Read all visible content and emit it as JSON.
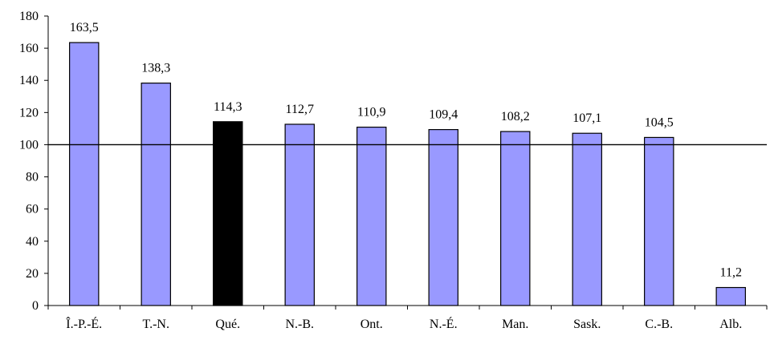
{
  "chart_data": {
    "type": "bar",
    "title": "",
    "xlabel": "",
    "ylabel": "",
    "categories": [
      "Î.-P.-É.",
      "T.-N.",
      "Qué.",
      "N.-B.",
      "Ont.",
      "N.-É.",
      "Man.",
      "Sask.",
      "C.-B.",
      "Alb."
    ],
    "values": [
      163.5,
      138.3,
      114.3,
      112.7,
      110.9,
      109.4,
      108.2,
      107.1,
      104.5,
      11.2
    ],
    "value_labels": [
      "163,5",
      "138,3",
      "114,3",
      "112,7",
      "110,9",
      "109,4",
      "108,2",
      "107,1",
      "104,5",
      "11,2"
    ],
    "highlight_index": 2,
    "ylim": [
      0,
      180
    ],
    "yticks": [
      0,
      20,
      40,
      60,
      80,
      100,
      120,
      140,
      160,
      180
    ],
    "reference_line": 100,
    "grid": false,
    "legend": "none",
    "colors": {
      "bar": "#9999ff",
      "highlight": "#000000"
    }
  }
}
